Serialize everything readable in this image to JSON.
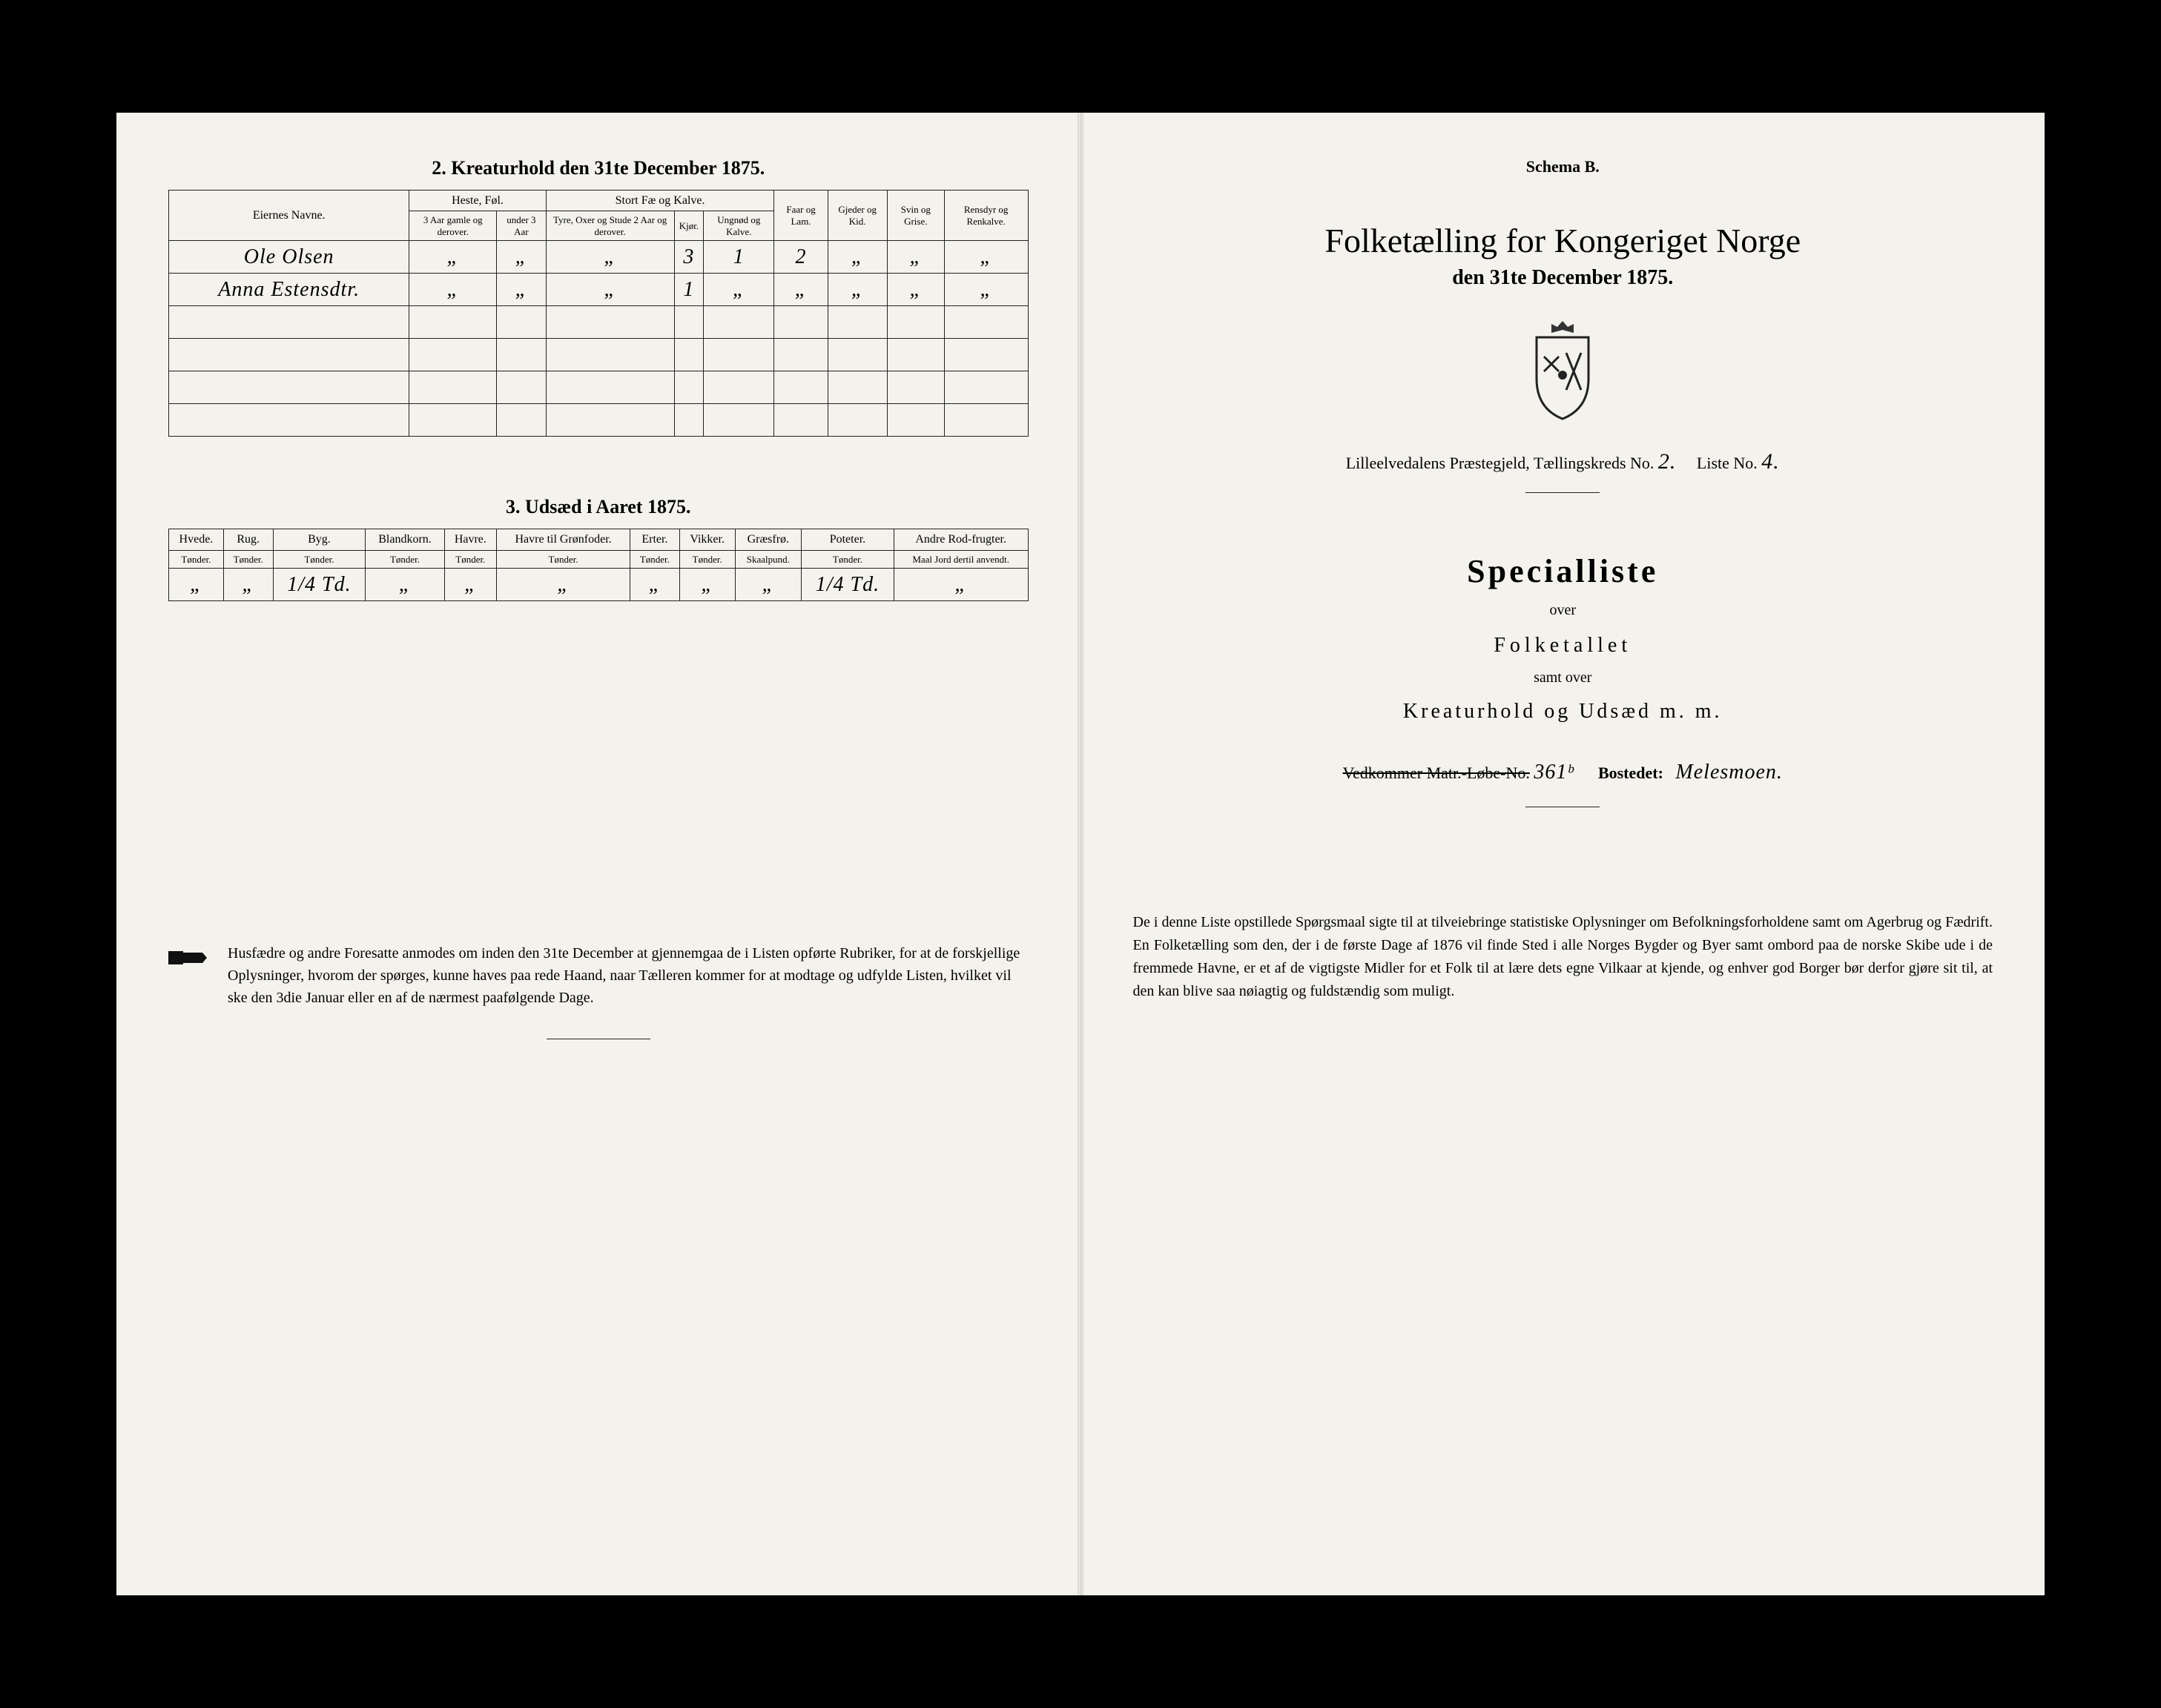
{
  "left": {
    "section2": {
      "title": "2.  Kreaturhold den 31te December 1875.",
      "owners_header": "Eiernes Navne.",
      "groups": {
        "heste": "Heste, Føl.",
        "stortfe": "Stort Fæ og Kalve.",
        "faar": "Faar og Lam.",
        "gjeder": "Gjeder og Kid.",
        "svin": "Svin og Grise.",
        "rensdyr": "Rensdyr og Renkalve."
      },
      "sub": {
        "heste1": "3 Aar gamle og derover.",
        "heste2": "under 3 Aar",
        "fe1": "Tyre, Oxer og Stude 2 Aar og derover.",
        "fe2": "Kjør.",
        "fe3": "Ungnød og Kalve."
      },
      "rows": [
        {
          "owner": "Ole Olsen",
          "c": [
            "„",
            "„",
            "„",
            "3",
            "1",
            "2",
            "„",
            "„",
            "„"
          ]
        },
        {
          "owner": "Anna Estensdtr.",
          "c": [
            "„",
            "„",
            "„",
            "1",
            "„",
            "„",
            "„",
            "„",
            "„"
          ]
        }
      ]
    },
    "section3": {
      "title": "3.  Udsæd i Aaret 1875.",
      "cols": [
        "Hvede.",
        "Rug.",
        "Byg.",
        "Blandkorn.",
        "Havre.",
        "Havre til Grønfoder.",
        "Erter.",
        "Vikker.",
        "Græsfrø.",
        "Poteter.",
        "Andre Rod-frugter."
      ],
      "units": [
        "Tønder.",
        "Tønder.",
        "Tønder.",
        "Tønder.",
        "Tønder.",
        "Tønder.",
        "Tønder.",
        "Tønder.",
        "Skaalpund.",
        "Tønder.",
        "Maal Jord dertil anvendt."
      ],
      "row": [
        "„",
        "„",
        "1/4 Td.",
        "„",
        "„",
        "„",
        "„",
        "„",
        "„",
        "1/4 Td.",
        "„"
      ]
    },
    "footer": "Husfædre og andre Foresatte anmodes om inden den 31te December at gjennemgaa de i Listen opførte Rubriker, for at de forskjellige Oplysninger, hvorom der spørges, kunne haves paa rede Haand, naar Tælleren kommer for at modtage og udfylde Listen, hvilket vil ske den 3die Januar eller en af de nærmest paafølgende Dage."
  },
  "right": {
    "schema": "Schema B.",
    "title": "Folketælling for Kongeriget Norge",
    "date": "den 31te December 1875.",
    "parish_prefix": "Lilleelvedalens Præstegjeld,  Tællingskreds No.",
    "kreds_no": "2.",
    "liste_lbl": "Liste No.",
    "liste_no": "4.",
    "special": "Specialliste",
    "over": "over",
    "folketallet": "Folketallet",
    "samt": "samt over",
    "kreatur": "Kreaturhold og Udsæd m. m.",
    "matr_lbl_strike": "Vedkommer Matr.-Løbe-No.",
    "matr_no": "361ᵇ",
    "bosted_lbl": "Bostedet:",
    "bosted": "Melesmoen.",
    "footer": "De i denne Liste opstillede Spørgsmaal sigte til at tilveiebringe statistiske Oplysninger om Befolkningsforholdene samt om Agerbrug og Fædrift.  En Folketælling som den, der i de første Dage af 1876 vil finde Sted i alle Norges Bygder og Byer samt ombord paa de norske Skibe ude i de fremmede Havne, er et af de vigtigste Midler for et Folk til at lære dets egne Vilkaar at kjende, og enhver god Borger bør derfor gjøre sit til, at den kan blive saa nøiagtig og fuldstændig som muligt."
  },
  "colors": {
    "paper": "#f4f2ec",
    "ink": "#1a1a1a"
  }
}
